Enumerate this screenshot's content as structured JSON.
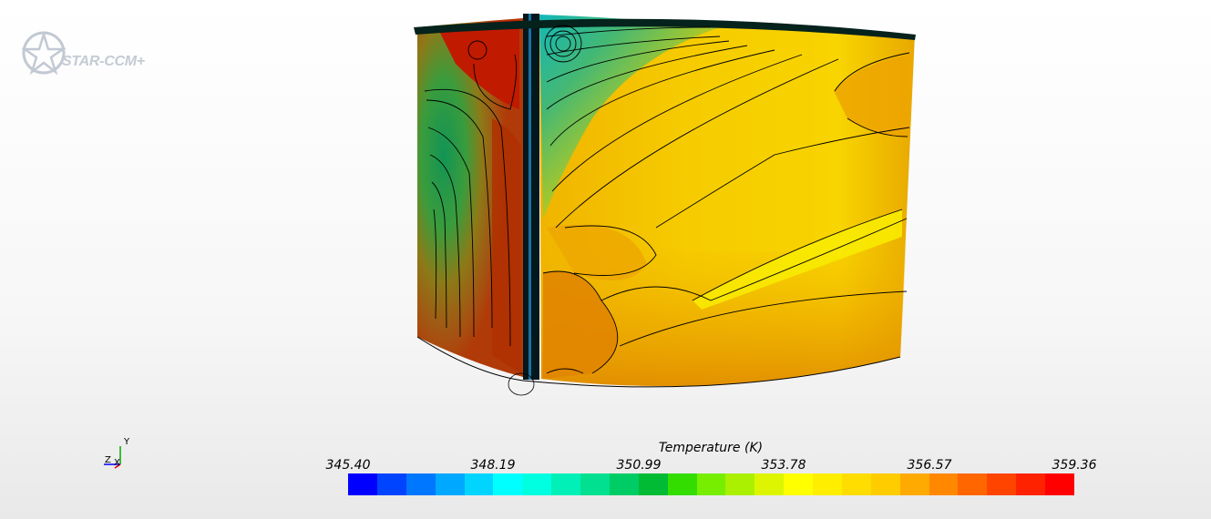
{
  "app": {
    "logo_text": "STAR-CCM+"
  },
  "axes": {
    "x": "X",
    "y": "Y",
    "z": "Z"
  },
  "legend": {
    "title": "Temperature (K)",
    "ticks": [
      "345.40",
      "348.19",
      "350.99",
      "353.78",
      "356.57",
      "359.36"
    ],
    "colors": [
      "#0000ff",
      "#0044ff",
      "#0077ff",
      "#00a8ff",
      "#00d4ff",
      "#00ffff",
      "#00ffe0",
      "#00f0b8",
      "#00e090",
      "#00cc66",
      "#00bb33",
      "#33dd00",
      "#77ee00",
      "#aaf000",
      "#ddf500",
      "#ffff00",
      "#ffee00",
      "#ffdd00",
      "#ffcc00",
      "#ffaa00",
      "#ff8800",
      "#ff6600",
      "#ff4400",
      "#ff2200",
      "#ff0000"
    ]
  },
  "colors": {
    "cyl_yellow": "#f2c200",
    "cyl_orange": "#e89000",
    "cyl_red": "#b41800",
    "cyl_green": "#1a9e55",
    "cyl_teal": "#18c8b8",
    "contour": "#000000"
  }
}
